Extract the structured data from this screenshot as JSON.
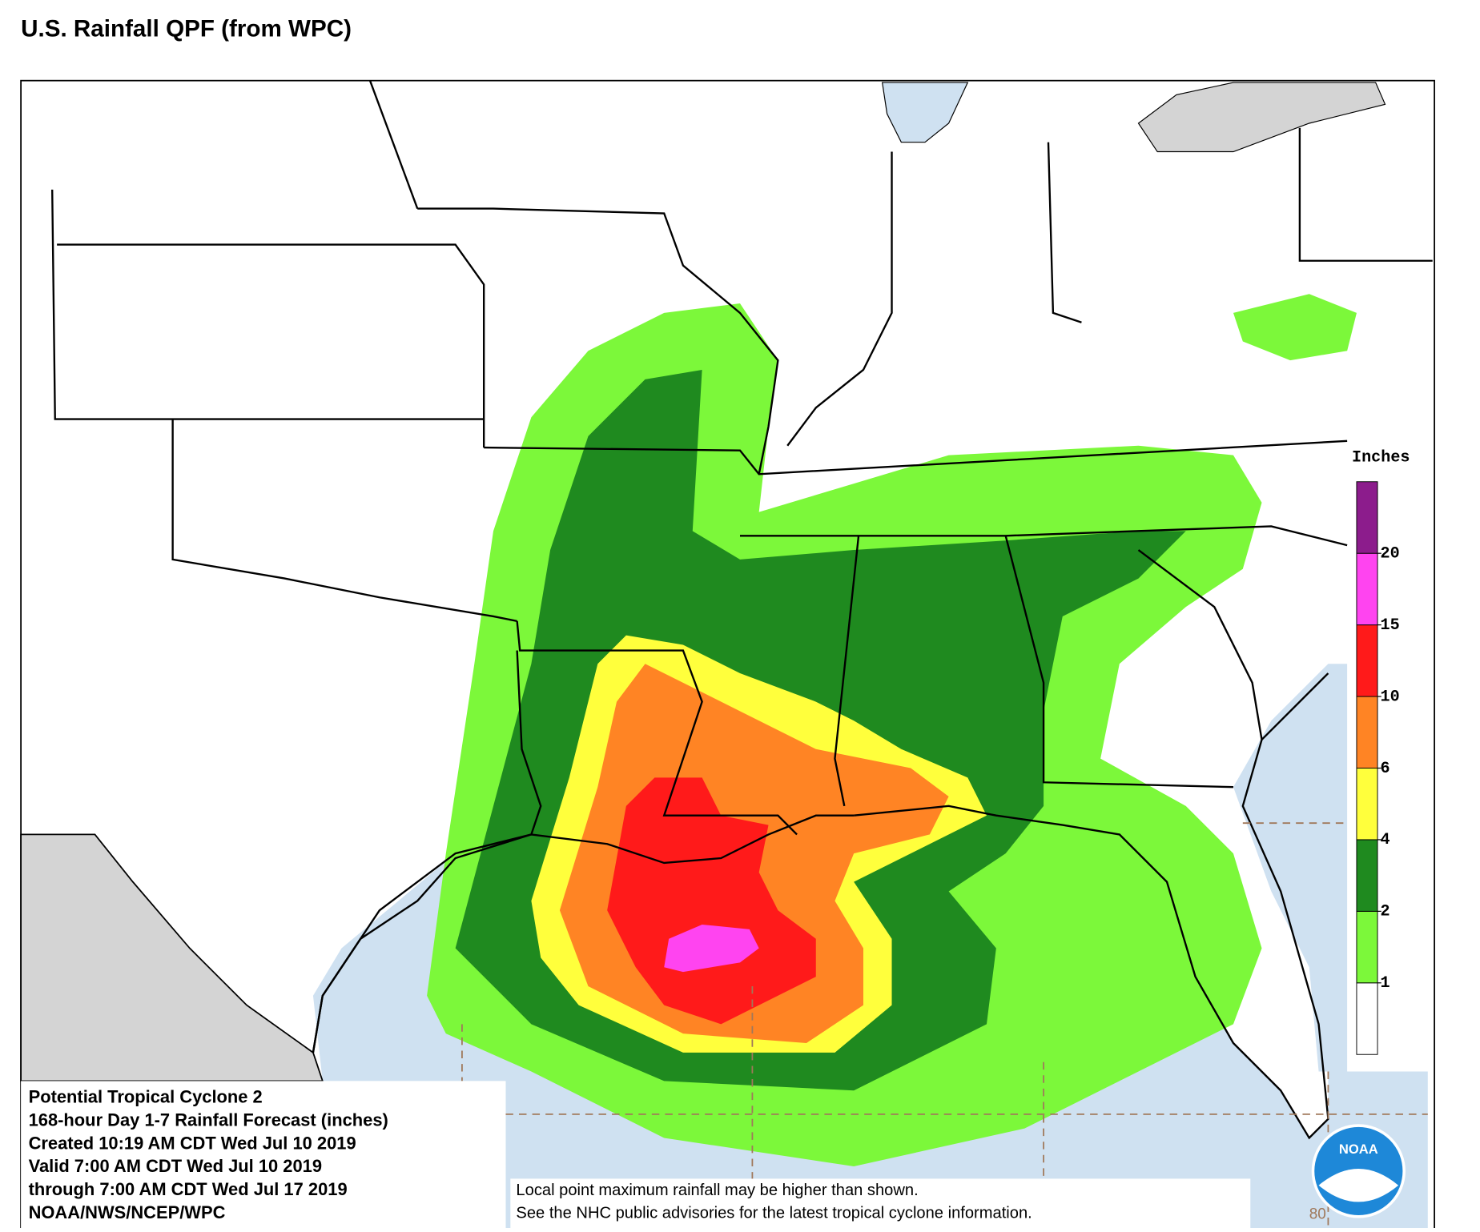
{
  "header": {
    "title": "U.S. Rainfall QPF (from WPC)"
  },
  "info_box": {
    "lines": [
      "Potential Tropical Cyclone 2",
      "168-hour Day 1-7 Rainfall Forecast (inches)",
      "Created 10:19 AM CDT Wed Jul 10 2019",
      "Valid 7:00 AM CDT Wed Jul 10 2019",
      "through 7:00 AM CDT Wed Jul 17 2019",
      "NOAA/NWS/NCEP/WPC"
    ]
  },
  "disclaimer": {
    "lines": [
      "Local point maximum rainfall may be higher than shown.",
      "See the NHC public advisories for the latest tropical cyclone information."
    ]
  },
  "legend": {
    "title": "Inches",
    "ticks": [
      1,
      2,
      4,
      6,
      10,
      15,
      20
    ],
    "colors": [
      "#ffffff",
      "#7cf83a",
      "#1f8a1f",
      "#ffff3c",
      "#ff8424",
      "#ff1a1a",
      "#ff44f0",
      "#8c1c8c"
    ]
  },
  "map": {
    "longitude_label": "80",
    "logo": "NOAA"
  }
}
